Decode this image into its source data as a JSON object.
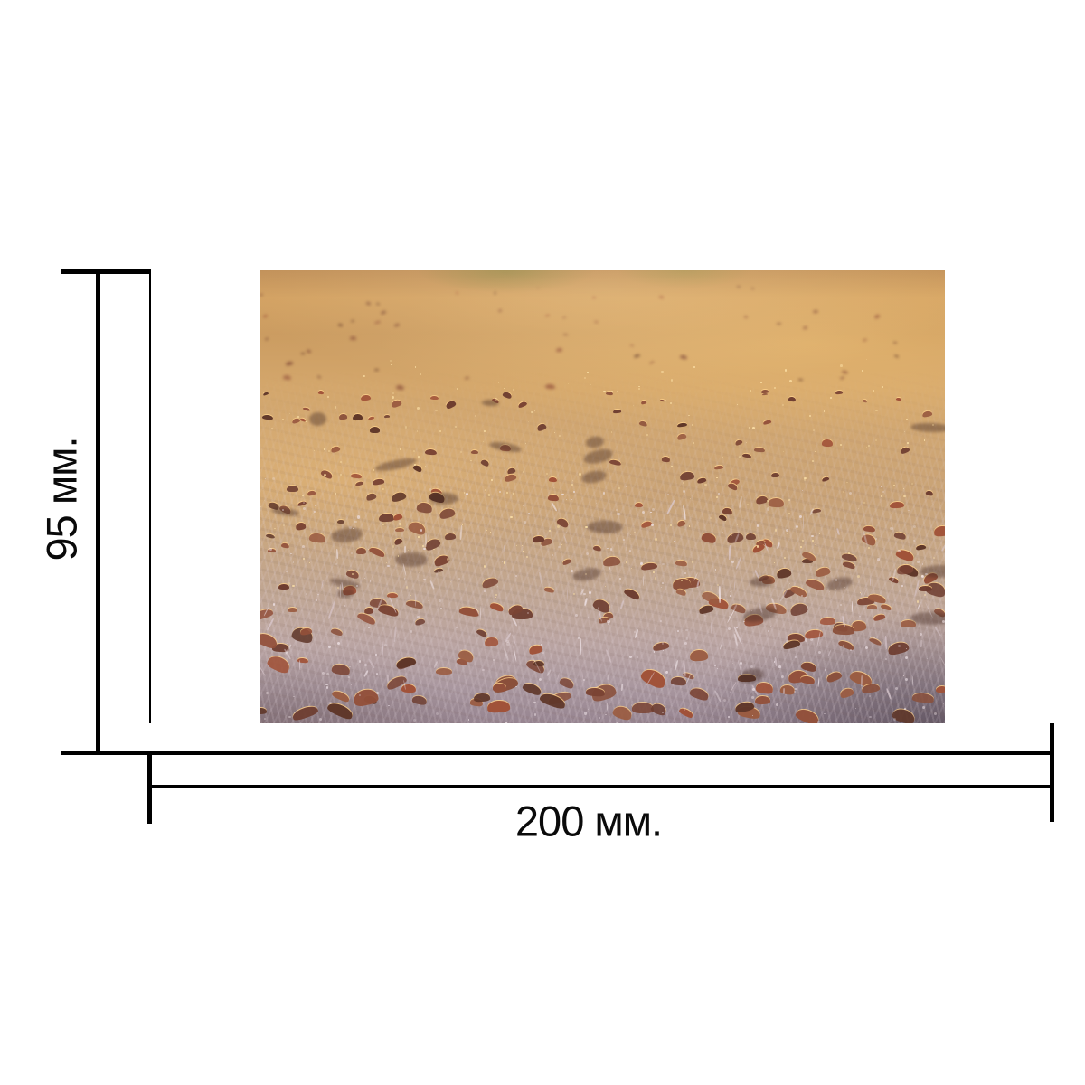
{
  "diagram": {
    "background": "#ffffff",
    "line_color": "#000000",
    "text_color": "#0a0a0a",
    "height_dimension": {
      "label": "95 мм."
    },
    "width_dimension": {
      "label": "200 мм."
    }
  },
  "photo": {
    "alt": "Frost-covered grass field strewn with fallen brown autumn leaves, backlit by low golden sunlight; foreground frost turns lavender, bottom-right corner in shadow",
    "palette": {
      "leaf_colors": [
        "#7b4434",
        "#8a4f3a",
        "#93503a",
        "#6e3d30",
        "#9b5c41",
        "#a15238",
        "#5f3628"
      ],
      "leaf_rim_light": "rgba(255,210,140,0.85)",
      "frost_light": "#f2e6ea",
      "sparkle_gold": "#ffe4aa",
      "grass_light": "#ddccd2",
      "glow": "#f8cd82",
      "shadow_corner": "#3c3440",
      "green_hint": "#6e7d37"
    }
  }
}
